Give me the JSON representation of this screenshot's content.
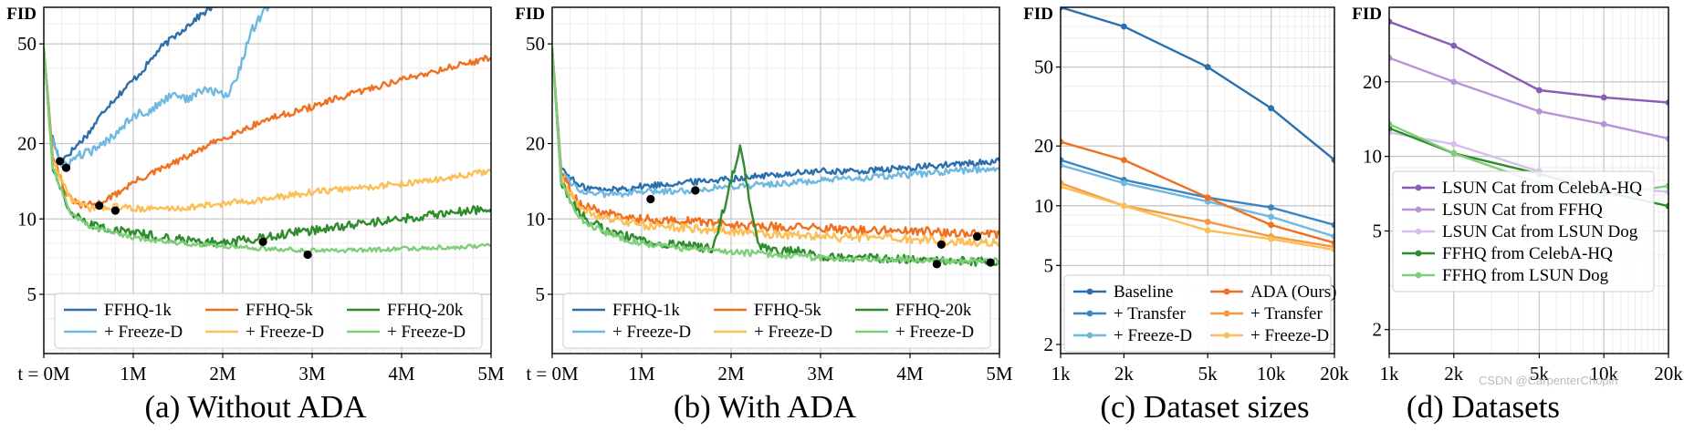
{
  "figure": {
    "watermark": "CSDN @CarpenterChopin"
  },
  "colors": {
    "dark_blue": "#2b6fad",
    "light_blue": "#6fb8e0",
    "dark_orange": "#f07020",
    "light_orange": "#fbbf56",
    "dark_green": "#2e8b2e",
    "light_green": "#7fcf7a",
    "purple": "#8a5cb8",
    "light_purple": "#b794d6",
    "lavender": "#d4bff0"
  },
  "chart_data": [
    {
      "type": "line",
      "title": "(a) Without ADA",
      "ylabel": "FID",
      "x_tick_labels": [
        "t = 0M",
        "1M",
        "2M",
        "3M",
        "4M",
        "5M"
      ],
      "x_tick_values": [
        0,
        1,
        2,
        3,
        4,
        5
      ],
      "xlim": [
        0,
        5
      ],
      "y_scale": "log",
      "ylim": [
        2.9,
        70
      ],
      "y_ticks": [
        5,
        10,
        20,
        50
      ],
      "y_tick_labels": [
        "5",
        "10",
        "20",
        "50"
      ],
      "grid": true,
      "legend_position": "bottom",
      "legend_columns": 3,
      "series": [
        {
          "name": "FFHQ-1k",
          "color": "#2b6fad",
          "curve": "blow_up_early",
          "x": [
            0,
            0.08,
            0.18,
            0.3,
            0.5,
            0.7,
            0.9,
            1.1,
            1.3,
            1.5,
            1.7,
            2.1
          ],
          "y": [
            48,
            22,
            17,
            18.5,
            22,
            28,
            33,
            39,
            48,
            55,
            63,
            80
          ],
          "noise": 0.03
        },
        {
          "name": "+ Freeze-D",
          "color": "#6fb8e0",
          "curve": "blow_up_late",
          "x": [
            0,
            0.08,
            0.2,
            0.4,
            0.6,
            0.8,
            1.0,
            1.2,
            1.45,
            1.6,
            1.8,
            2.05,
            2.2,
            2.3,
            2.7
          ],
          "y": [
            48,
            22,
            16,
            18,
            19,
            22,
            26,
            27,
            32,
            30,
            33,
            31,
            40,
            55,
            90
          ],
          "noise": 0.04
        },
        {
          "name": "FFHQ-5k",
          "color": "#f07020",
          "curve": "steady_rise",
          "x": [
            0,
            0.1,
            0.25,
            0.4,
            0.6,
            0.8,
            1.0,
            1.5,
            2.0,
            2.5,
            3.0,
            3.5,
            4.0,
            4.5,
            5.0
          ],
          "y": [
            48,
            18,
            12.5,
            11.3,
            11.5,
            12.5,
            14,
            17,
            21,
            25,
            28,
            32,
            36,
            40,
            44
          ],
          "noise": 0.03
        },
        {
          "name": "+ Freeze-D",
          "color": "#fbbf56",
          "curve": "slow_rise",
          "x": [
            0,
            0.1,
            0.3,
            0.5,
            0.8,
            1.0,
            1.5,
            2.0,
            2.5,
            3.0,
            3.5,
            4.0,
            4.5,
            5.0
          ],
          "y": [
            48,
            17,
            12,
            11,
            11.2,
            11,
            11,
            11.5,
            12,
            12.8,
            13.3,
            13.8,
            14.5,
            15.5
          ],
          "noise": 0.03
        },
        {
          "name": "FFHQ-20k",
          "color": "#2e8b2e",
          "curve": "late_rise",
          "x": [
            0,
            0.1,
            0.3,
            0.5,
            0.8,
            1.0,
            1.5,
            2.0,
            2.5,
            3.0,
            3.5,
            4.0,
            4.5,
            5.0
          ],
          "y": [
            48,
            16,
            10.5,
            9.5,
            9,
            8.8,
            8.3,
            8,
            8.5,
            9,
            9.5,
            10,
            10.5,
            11
          ],
          "noise": 0.04
        },
        {
          "name": "+ Freeze-D",
          "color": "#7fcf7a",
          "curve": "flat",
          "x": [
            0,
            0.1,
            0.3,
            0.5,
            0.8,
            1.0,
            1.5,
            2.0,
            2.5,
            3.0,
            3.5,
            4.0,
            4.5,
            5.0
          ],
          "y": [
            48,
            16,
            10.5,
            9.4,
            8.8,
            8.4,
            8.0,
            7.8,
            7.6,
            7.5,
            7.5,
            7.6,
            7.7,
            7.8
          ],
          "noise": 0.02
        }
      ],
      "markers": [
        [
          0.18,
          17
        ],
        [
          0.25,
          16
        ],
        [
          0.62,
          11.3
        ],
        [
          0.8,
          10.8
        ],
        [
          2.45,
          8.1
        ],
        [
          2.95,
          7.2
        ]
      ]
    },
    {
      "type": "line",
      "title": "(b) With ADA",
      "ylabel": "FID",
      "x_tick_labels": [
        "t = 0M",
        "1M",
        "2M",
        "3M",
        "4M",
        "5M"
      ],
      "x_tick_values": [
        0,
        1,
        2,
        3,
        4,
        5
      ],
      "xlim": [
        0,
        5
      ],
      "y_scale": "log",
      "ylim": [
        2.9,
        70
      ],
      "y_ticks": [
        5,
        10,
        20,
        50
      ],
      "y_tick_labels": [
        "5",
        "10",
        "20",
        "50"
      ],
      "grid": true,
      "legend_position": "bottom",
      "legend_columns": 3,
      "series": [
        {
          "name": "FFHQ-1k",
          "color": "#2b6fad",
          "curve": "plateau",
          "x": [
            0,
            0.1,
            0.3,
            0.6,
            1.0,
            1.5,
            2.0,
            2.5,
            3.0,
            3.5,
            4.0,
            4.5,
            5.0
          ],
          "y": [
            48,
            16,
            13.5,
            13,
            13.5,
            14,
            14.5,
            15,
            15.5,
            15.5,
            16,
            16.5,
            17
          ],
          "noise": 0.03
        },
        {
          "name": "+ Freeze-D",
          "color": "#6fb8e0",
          "curve": "plateau",
          "x": [
            0,
            0.1,
            0.3,
            0.6,
            1.0,
            1.5,
            2.0,
            2.5,
            3.0,
            3.5,
            4.0,
            4.5,
            5.0
          ],
          "y": [
            48,
            15.5,
            13,
            12.5,
            12.8,
            13,
            13.5,
            13.8,
            14.2,
            14.6,
            15,
            15.5,
            16
          ],
          "noise": 0.03
        },
        {
          "name": "FFHQ-5k",
          "color": "#f07020",
          "curve": "slow_decline",
          "x": [
            0,
            0.1,
            0.3,
            0.6,
            1.0,
            1.5,
            2.0,
            2.5,
            3.0,
            3.5,
            4.0,
            4.5,
            5.0
          ],
          "y": [
            48,
            15,
            11.5,
            10.5,
            10,
            9.8,
            9.5,
            9.3,
            9.2,
            9,
            9,
            8.8,
            8.7
          ],
          "noise": 0.04
        },
        {
          "name": "+ Freeze-D",
          "color": "#fbbf56",
          "curve": "slow_decline",
          "x": [
            0,
            0.1,
            0.3,
            0.6,
            1.0,
            1.5,
            2.0,
            2.5,
            3.0,
            3.5,
            4.0,
            4.5,
            5.0
          ],
          "y": [
            48,
            15,
            11,
            10,
            9.5,
            9.2,
            8.9,
            8.7,
            8.5,
            8.4,
            8.3,
            8.1,
            8
          ],
          "noise": 0.04
        },
        {
          "name": "FFHQ-20k",
          "color": "#2e8b2e",
          "curve": "spike_then_decline",
          "x": [
            0,
            0.1,
            0.3,
            0.6,
            1.0,
            1.5,
            1.8,
            2.1,
            2.3,
            2.6,
            2.8,
            3.0,
            3.5,
            4.0,
            4.5,
            5.0
          ],
          "y": [
            48,
            14,
            10.5,
            9,
            8.2,
            7.8,
            7.6,
            19.5,
            7.8,
            7.4,
            7.5,
            7,
            7,
            6.9,
            6.8,
            6.7
          ],
          "noise": 0.04
        },
        {
          "name": "+ Freeze-D",
          "color": "#7fcf7a",
          "curve": "decline",
          "x": [
            0,
            0.1,
            0.3,
            0.6,
            1.0,
            1.5,
            2.0,
            2.5,
            3.0,
            3.5,
            4.0,
            4.5,
            5.0
          ],
          "y": [
            48,
            14,
            10,
            8.8,
            8,
            7.6,
            7.4,
            7.2,
            7,
            6.9,
            6.9,
            6.8,
            6.8
          ],
          "noise": 0.03
        }
      ],
      "markers": [
        [
          1.1,
          12
        ],
        [
          1.6,
          13
        ],
        [
          4.35,
          7.9
        ],
        [
          4.3,
          6.6
        ],
        [
          4.75,
          8.5
        ],
        [
          4.9,
          6.7
        ]
      ]
    },
    {
      "type": "line",
      "title": "(c) Dataset sizes",
      "ylabel": "FID",
      "x_scale": "log",
      "x_ticks": [
        1,
        2,
        5,
        10,
        20
      ],
      "x_tick_labels": [
        "1k",
        "2k",
        "5k",
        "10k",
        "20k"
      ],
      "xlim": [
        1,
        20
      ],
      "y_scale": "log",
      "ylim": [
        1.8,
        100
      ],
      "y_ticks": [
        2,
        5,
        10,
        20,
        50
      ],
      "y_tick_labels": [
        "2",
        "5",
        "10",
        "20",
        "50"
      ],
      "grid": true,
      "legend_position": "bottom",
      "legend_columns": 2,
      "series": [
        {
          "name": "Baseline",
          "color": "#2b6fad",
          "x": [
            1,
            2,
            5,
            10,
            20
          ],
          "y": [
            100,
            80,
            50,
            31,
            17
          ]
        },
        {
          "name": "+ Transfer",
          "color": "#3d84c2",
          "x": [
            1,
            2,
            5,
            10,
            20
          ],
          "y": [
            17,
            13.5,
            11,
            9.8,
            8
          ]
        },
        {
          "name": "+ Freeze-D",
          "color": "#6fb8e0",
          "x": [
            1,
            2,
            5,
            10,
            20
          ],
          "y": [
            16,
            13,
            10.5,
            8.8,
            7
          ]
        },
        {
          "name": "ADA (Ours)",
          "color": "#f07020",
          "x": [
            1,
            2,
            5,
            10,
            20
          ],
          "y": [
            21,
            17,
            11,
            8,
            6.5
          ]
        },
        {
          "name": "+ Transfer",
          "color": "#f59a40",
          "x": [
            1,
            2,
            5,
            10,
            20
          ],
          "y": [
            13,
            10,
            8.3,
            7,
            6.2
          ]
        },
        {
          "name": "+ Freeze-D",
          "color": "#fbbf56",
          "x": [
            1,
            2,
            5,
            10,
            20
          ],
          "y": [
            12.5,
            10,
            7.5,
            6.8,
            6
          ]
        }
      ]
    },
    {
      "type": "line",
      "title": "(d) Datasets",
      "ylabel": "FID",
      "x_scale": "log",
      "x_ticks": [
        1,
        2,
        5,
        10,
        20
      ],
      "x_tick_labels": [
        "1k",
        "2k",
        "5k",
        "10k",
        "20k"
      ],
      "xlim": [
        1,
        20
      ],
      "y_scale": "log",
      "ylim": [
        1.6,
        40
      ],
      "y_ticks": [
        2,
        5,
        10,
        20
      ],
      "y_tick_labels": [
        "2",
        "5",
        "10",
        "20"
      ],
      "grid": true,
      "legend_position": "bottom-left",
      "legend_columns": 1,
      "series": [
        {
          "name": "LSUN Cat from CelebA-HQ",
          "color": "#8a5cb8",
          "x": [
            1,
            2,
            5,
            10,
            20
          ],
          "y": [
            35,
            28,
            18.5,
            17.3,
            16.5
          ]
        },
        {
          "name": "LSUN Cat from FFHQ",
          "color": "#b794d6",
          "x": [
            1,
            2,
            5,
            10,
            20
          ],
          "y": [
            25,
            20,
            15.2,
            13.5,
            11.8
          ]
        },
        {
          "name": "LSUN Cat from LSUN Dog",
          "color": "#d4bff0",
          "x": [
            1,
            2,
            5,
            10,
            20
          ],
          "y": [
            12.5,
            11.2,
            8.7,
            7.5,
            7.2
          ]
        },
        {
          "name": "FFHQ from CelebA-HQ",
          "color": "#2e8b2e",
          "x": [
            1,
            2,
            5,
            10,
            20
          ],
          "y": [
            13,
            10.3,
            8.5,
            7.2,
            6.3
          ]
        },
        {
          "name": "FFHQ from LSUN Dog",
          "color": "#7fcf7a",
          "x": [
            1,
            2,
            5,
            10,
            20
          ],
          "y": [
            13.5,
            10.3,
            7.8,
            7,
            7.6
          ]
        }
      ]
    }
  ]
}
